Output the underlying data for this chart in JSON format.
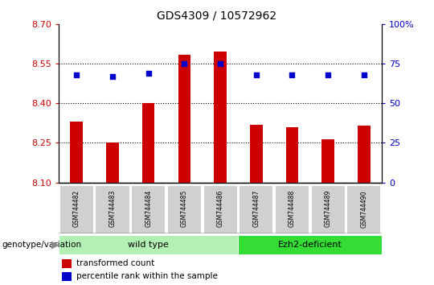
{
  "title": "GDS4309 / 10572962",
  "samples": [
    "GSM744482",
    "GSM744483",
    "GSM744484",
    "GSM744485",
    "GSM744486",
    "GSM744487",
    "GSM744488",
    "GSM744489",
    "GSM744490"
  ],
  "transformed_counts": [
    8.33,
    8.25,
    8.4,
    8.585,
    8.595,
    8.32,
    8.31,
    8.265,
    8.315
  ],
  "percentile_ranks": [
    68,
    67,
    69,
    75,
    75,
    68,
    68,
    68,
    68
  ],
  "ylim_left": [
    8.1,
    8.7
  ],
  "ylim_right": [
    0,
    100
  ],
  "yticks_left": [
    8.1,
    8.25,
    8.4,
    8.55,
    8.7
  ],
  "yticks_right": [
    0,
    25,
    50,
    75,
    100
  ],
  "bar_color": "#cc0000",
  "dot_color": "#0000cc",
  "groups": [
    {
      "label": "wild type",
      "start": 0,
      "end": 5,
      "color": "#b3f0b3"
    },
    {
      "label": "Ezh2-deficient",
      "start": 5,
      "end": 9,
      "color": "#33dd33"
    }
  ],
  "group_label_prefix": "genotype/variation",
  "legend_bar_label": "transformed count",
  "legend_dot_label": "percentile rank within the sample",
  "dotted_line_color": "#000000",
  "tick_label_color_left": "#cc0000",
  "tick_label_color_right": "#0000cc",
  "bg_color": "#ffffff"
}
